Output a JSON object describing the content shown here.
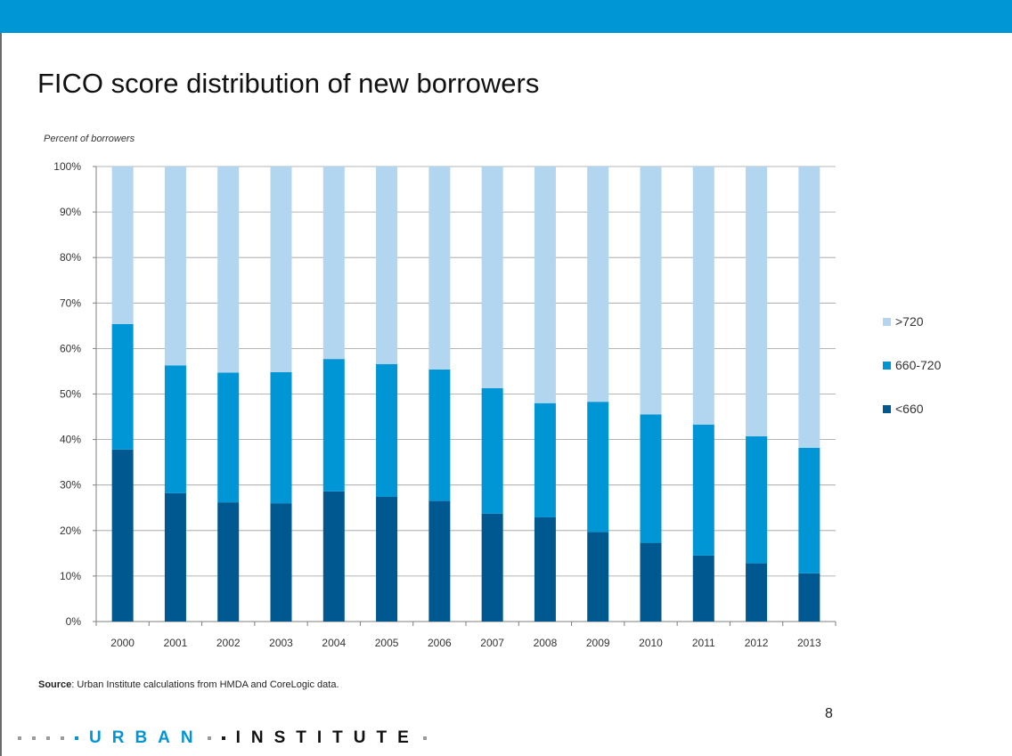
{
  "title": "FICO score distribution of new borrowers",
  "page_number": "8",
  "source": {
    "label": "Source",
    "text": ": Urban Institute calculations from HMDA and CoreLogic data."
  },
  "footer": {
    "brand_part1": "URBAN",
    "brand_part2": "INSTITUTE"
  },
  "colors": {
    "top_bar": "#0096d6",
    "gt720": "#b3d6f0",
    "mid": "#0096d6",
    "lt660": "#005890"
  },
  "chart_data": {
    "type": "bar",
    "stacked": true,
    "title": "FICO score distribution of new borrowers",
    "ylabel": "Percent of borrowers",
    "xlabel": "",
    "ylim": [
      0,
      100
    ],
    "ytick_step": 10,
    "y_tick_suffix": "%",
    "grid": true,
    "legend_position": "right",
    "categories": [
      "2000",
      "2001",
      "2002",
      "2003",
      "2004",
      "2005",
      "2006",
      "2007",
      "2008",
      "2009",
      "2010",
      "2011",
      "2012",
      "2013"
    ],
    "series": [
      {
        "name": "<660",
        "color": "#005890",
        "values": [
          37.8,
          28.2,
          26.2,
          26.0,
          28.6,
          27.4,
          26.5,
          23.7,
          22.9,
          19.7,
          17.3,
          14.5,
          12.8,
          10.6
        ]
      },
      {
        "name": "660-720",
        "color": "#0096d6",
        "values": [
          27.6,
          28.1,
          28.5,
          28.8,
          29.1,
          29.2,
          28.9,
          27.6,
          25.1,
          28.6,
          28.2,
          28.8,
          27.9,
          27.6
        ]
      },
      {
        "name": ">720",
        "color": "#b3d6f0",
        "values": [
          34.6,
          43.7,
          45.3,
          45.2,
          42.3,
          43.4,
          44.6,
          48.7,
          52.0,
          51.7,
          54.5,
          56.7,
          59.3,
          61.8
        ]
      }
    ],
    "legend_order": [
      ">720",
      "660-720",
      "<660"
    ]
  }
}
